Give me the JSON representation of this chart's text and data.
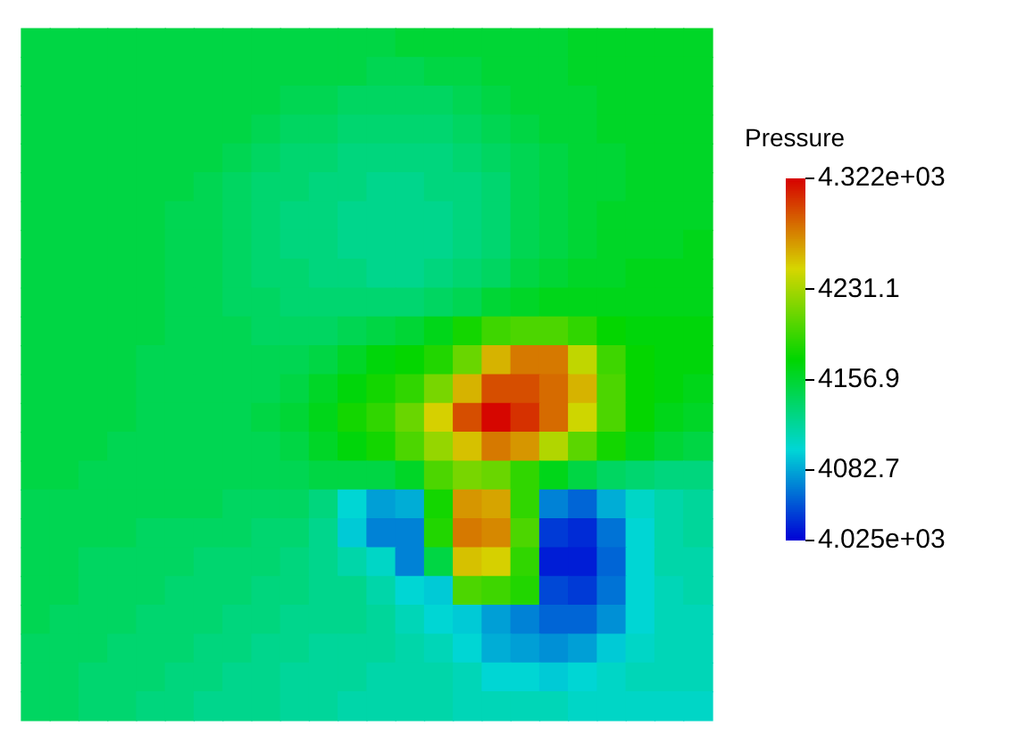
{
  "chart_data": {
    "type": "heatmap",
    "categories": [
      null,
      null,
      null,
      null,
      null,
      null,
      null,
      null,
      null,
      null,
      null,
      null,
      null,
      null,
      null,
      null,
      null,
      null,
      null,
      null,
      null,
      null,
      null,
      null
    ],
    "y_categories": [
      null,
      null,
      null,
      null,
      null,
      null,
      null,
      null,
      null,
      null,
      null,
      null,
      null,
      null,
      null,
      null,
      null,
      null,
      null,
      null,
      null,
      null,
      null,
      null
    ],
    "cells": [
      [
        4150,
        4150,
        4150,
        4150,
        4150,
        4150,
        4150,
        4150,
        4150,
        4150,
        4150,
        4150,
        4150,
        4155,
        4155,
        4155,
        4155,
        4155,
        4155,
        4160,
        4160,
        4160,
        4160,
        4160
      ],
      [
        4150,
        4150,
        4150,
        4150,
        4150,
        4150,
        4150,
        4150,
        4150,
        4150,
        4150,
        4150,
        4145,
        4145,
        4150,
        4150,
        4155,
        4155,
        4155,
        4160,
        4160,
        4160,
        4160,
        4160
      ],
      [
        4150,
        4150,
        4150,
        4150,
        4150,
        4150,
        4150,
        4150,
        4150,
        4145,
        4145,
        4140,
        4140,
        4140,
        4140,
        4145,
        4150,
        4155,
        4155,
        4155,
        4160,
        4160,
        4160,
        4160
      ],
      [
        4150,
        4150,
        4150,
        4150,
        4150,
        4150,
        4150,
        4150,
        4145,
        4140,
        4140,
        4135,
        4135,
        4135,
        4135,
        4140,
        4145,
        4150,
        4155,
        4155,
        4160,
        4160,
        4160,
        4160
      ],
      [
        4150,
        4150,
        4150,
        4150,
        4150,
        4150,
        4150,
        4145,
        4140,
        4135,
        4135,
        4130,
        4130,
        4130,
        4130,
        4135,
        4140,
        4145,
        4150,
        4155,
        4155,
        4160,
        4160,
        4160
      ],
      [
        4150,
        4150,
        4150,
        4150,
        4150,
        4150,
        4145,
        4140,
        4135,
        4135,
        4130,
        4130,
        4125,
        4125,
        4130,
        4130,
        4135,
        4145,
        4150,
        4155,
        4155,
        4160,
        4160,
        4160
      ],
      [
        4150,
        4150,
        4150,
        4150,
        4150,
        4145,
        4145,
        4140,
        4135,
        4130,
        4130,
        4125,
        4125,
        4125,
        4125,
        4130,
        4135,
        4145,
        4150,
        4155,
        4160,
        4160,
        4160,
        4160
      ],
      [
        4150,
        4150,
        4150,
        4150,
        4150,
        4145,
        4145,
        4140,
        4135,
        4130,
        4130,
        4125,
        4125,
        4125,
        4125,
        4130,
        4135,
        4145,
        4150,
        4155,
        4160,
        4160,
        4160,
        4165
      ],
      [
        4150,
        4150,
        4150,
        4150,
        4150,
        4145,
        4145,
        4140,
        4135,
        4135,
        4130,
        4130,
        4125,
        4125,
        4130,
        4135,
        4140,
        4150,
        4155,
        4160,
        4160,
        4165,
        4165,
        4165
      ],
      [
        4150,
        4150,
        4150,
        4150,
        4150,
        4145,
        4145,
        4140,
        4140,
        4135,
        4135,
        4135,
        4135,
        4135,
        4140,
        4145,
        4155,
        4160,
        4165,
        4165,
        4165,
        4165,
        4165,
        4165
      ],
      [
        4150,
        4150,
        4150,
        4150,
        4150,
        4145,
        4145,
        4145,
        4140,
        4140,
        4140,
        4145,
        4150,
        4155,
        4165,
        4180,
        4195,
        4200,
        4200,
        4190,
        4175,
        4170,
        4170,
        4170
      ],
      [
        4150,
        4150,
        4150,
        4150,
        4145,
        4145,
        4145,
        4145,
        4145,
        4145,
        4150,
        4160,
        4170,
        4175,
        4185,
        4210,
        4260,
        4280,
        4280,
        4240,
        4195,
        4175,
        4170,
        4170
      ],
      [
        4150,
        4150,
        4150,
        4150,
        4145,
        4145,
        4145,
        4145,
        4145,
        4150,
        4160,
        4170,
        4180,
        4190,
        4215,
        4260,
        4295,
        4295,
        4285,
        4260,
        4200,
        4175,
        4170,
        4165
      ],
      [
        4150,
        4150,
        4150,
        4150,
        4145,
        4145,
        4145,
        4145,
        4150,
        4155,
        4165,
        4180,
        4190,
        4210,
        4250,
        4295,
        4320,
        4305,
        4285,
        4245,
        4200,
        4175,
        4165,
        4160
      ],
      [
        4150,
        4150,
        4150,
        4145,
        4145,
        4145,
        4145,
        4145,
        4145,
        4150,
        4160,
        4170,
        4180,
        4200,
        4225,
        4255,
        4280,
        4270,
        4235,
        4205,
        4180,
        4165,
        4155,
        4150
      ],
      [
        4150,
        4150,
        4145,
        4145,
        4145,
        4145,
        4145,
        4145,
        4145,
        4145,
        4150,
        4150,
        4150,
        4160,
        4200,
        4215,
        4210,
        4190,
        4165,
        4150,
        4140,
        4135,
        4130,
        4130
      ],
      [
        4145,
        4145,
        4145,
        4145,
        4145,
        4145,
        4145,
        4140,
        4140,
        4140,
        4130,
        4100,
        4080,
        4085,
        4180,
        4270,
        4265,
        4190,
        4070,
        4060,
        4085,
        4105,
        4115,
        4120
      ],
      [
        4145,
        4145,
        4145,
        4145,
        4140,
        4140,
        4140,
        4140,
        4135,
        4135,
        4125,
        4095,
        4070,
        4070,
        4185,
        4280,
        4275,
        4200,
        4045,
        4040,
        4065,
        4100,
        4115,
        4120
      ],
      [
        4145,
        4145,
        4140,
        4140,
        4140,
        4140,
        4135,
        4135,
        4135,
        4130,
        4125,
        4115,
        4105,
        4070,
        4150,
        4255,
        4250,
        4190,
        4035,
        4035,
        4060,
        4100,
        4115,
        4115
      ],
      [
        4145,
        4145,
        4140,
        4140,
        4140,
        4135,
        4135,
        4135,
        4130,
        4130,
        4125,
        4125,
        4115,
        4100,
        4095,
        4200,
        4195,
        4185,
        4050,
        4045,
        4065,
        4100,
        4110,
        4115
      ],
      [
        4145,
        4140,
        4140,
        4140,
        4135,
        4135,
        4135,
        4130,
        4130,
        4125,
        4125,
        4125,
        4120,
        4110,
        4100,
        4095,
        4080,
        4070,
        4060,
        4060,
        4075,
        4100,
        4110,
        4110
      ],
      [
        4140,
        4140,
        4140,
        4135,
        4135,
        4135,
        4130,
        4130,
        4125,
        4125,
        4120,
        4120,
        4120,
        4115,
        4110,
        4100,
        4085,
        4080,
        4075,
        4080,
        4095,
        4105,
        4110,
        4110
      ],
      [
        4140,
        4140,
        4135,
        4135,
        4135,
        4130,
        4130,
        4125,
        4125,
        4120,
        4120,
        4120,
        4115,
        4115,
        4115,
        4110,
        4100,
        4100,
        4095,
        4100,
        4105,
        4110,
        4110,
        4110
      ],
      [
        4140,
        4140,
        4135,
        4135,
        4130,
        4130,
        4125,
        4125,
        4125,
        4120,
        4120,
        4115,
        4115,
        4115,
        4115,
        4110,
        4110,
        4110,
        4110,
        4105,
        4105,
        4105,
        4105,
        4105
      ]
    ],
    "clim": [
      4025,
      4322
    ],
    "cticks": [
      {
        "value": 4025,
        "label": "4.025e+03"
      },
      4082.7,
      4156.9,
      4231.1,
      {
        "value": 4322,
        "label": "4.322e+03"
      }
    ],
    "clabel": "Pressure",
    "tick_labels": false
  }
}
